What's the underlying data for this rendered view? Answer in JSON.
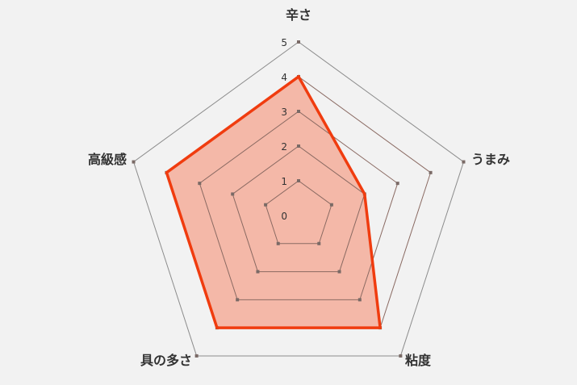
{
  "chart_data": {
    "type": "radar",
    "categories": [
      "辛さ",
      "うまみ",
      "粘度",
      "具の多さ",
      "高級感"
    ],
    "values": [
      4,
      2,
      4,
      4,
      4
    ],
    "rlim": [
      0,
      5
    ],
    "ticks": [
      "0",
      "1",
      "2",
      "3",
      "4",
      "5"
    ],
    "grid": true,
    "colors": {
      "line": "#f03c0f",
      "fill": "#f4b8a8",
      "grid": "#8c8c8c"
    }
  }
}
